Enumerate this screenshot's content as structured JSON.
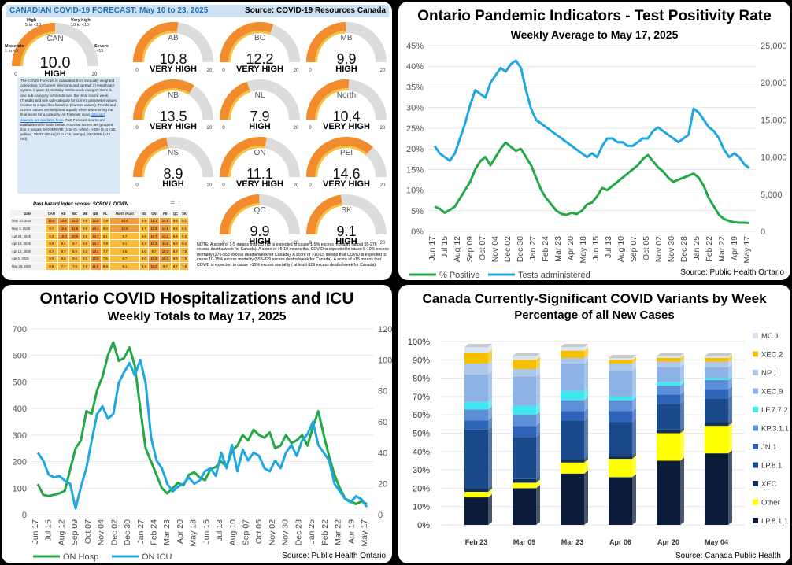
{
  "forecast": {
    "header_title": "CANADIAN COVID-19 FORECAST: May 10 to 23, 2025",
    "header_source": "Source: COVID-19 Resources Canada",
    "can_gauge": {
      "region": "CAN",
      "value": "10.0",
      "level": "HIGH",
      "fraction": 0.5,
      "labels": {
        "moderate": "Moderate",
        "moderate_range": "1 to <5",
        "high": "High",
        "high_range": "5 to <10",
        "very_high": "Very high",
        "very_high_range": "10 to <15",
        "severe": "Severe",
        "severe_range": ">15"
      },
      "min": "0",
      "max": "20"
    },
    "gauges": [
      {
        "region": "AB",
        "value": "10.8",
        "level": "VERY HIGH",
        "fraction": 0.54
      },
      {
        "region": "BC",
        "value": "12.2",
        "level": "VERY HIGH",
        "fraction": 0.61
      },
      {
        "region": "MB",
        "value": "9.9",
        "level": "HIGH",
        "fraction": 0.495
      },
      {
        "region": "NB",
        "value": "13.5",
        "level": "VERY HIGH",
        "fraction": 0.675
      },
      {
        "region": "NL",
        "value": "7.9",
        "level": "HIGH",
        "fraction": 0.395
      },
      {
        "region": "North",
        "value": "10.4",
        "level": "VERY HIGH",
        "fraction": 0.52
      },
      {
        "region": "NS",
        "value": "8.9",
        "level": "HIGH",
        "fraction": 0.445
      },
      {
        "region": "ON",
        "value": "11.1",
        "level": "VERY HIGH",
        "fraction": 0.555
      },
      {
        "region": "PEI",
        "value": "14.6",
        "level": "VERY HIGH",
        "fraction": 0.73
      },
      {
        "region": "QC",
        "value": "9.9",
        "level": "HIGH",
        "fraction": 0.495
      },
      {
        "region": "SK",
        "value": "9.1",
        "level": "HIGH",
        "fraction": 0.455
      }
    ],
    "gauge_min": "0",
    "gauge_max": "20",
    "description_text": "The COVID Forecast is calculated from 3 equally weighted categories: 1) Current infections and spread; 2) Healthcare system impact; 3) Mortality. Within each category there is one sub-category for trends over the most recent week (Trends) and one sub-category for current parameter values relative to a specified baseline (Current values). Trends and current values are weighted equally when determining the final score for a category. All Forecast input",
    "description_link": "data and sources are available here",
    "description_text2": ". Past Forecast scores are available in the Table below. Forecast scores are grouped into 4 ranges: MODERATE (1 to <5, white), HIGH (5 to <10, yellow), VERY HIGH (10 to <15, orange), SEVERE (>15 red)",
    "table_title": "Past hazard index scores: SCROLL DOWN",
    "table_icons": "☰ ⋮",
    "table_headers": [
      "Date",
      "CAN",
      "AB",
      "BC",
      "MB",
      "NB",
      "NL",
      "North /Nunt",
      "NS",
      "ON",
      "PE",
      "QC",
      "SK"
    ],
    "table_rows": [
      [
        "May 10, 2025",
        "10.0",
        "10.8",
        "12.2",
        "9.9",
        "13.5",
        "7.9",
        "10.4",
        "8.9",
        "11.1",
        "14.6",
        "9.9",
        "9.1"
      ],
      [
        "May 3, 2025",
        "9.7",
        "10.4",
        "11.6",
        "9.9",
        "14.1",
        "8.0",
        "10.0",
        "8.7",
        "10.6",
        "14.6",
        "9.6",
        "9.1"
      ],
      [
        "Apr 26, 2025",
        "9.3",
        "10.0",
        "10.6",
        "9.8",
        "14.7",
        "8.1",
        "9.7",
        "8.6",
        "10.7",
        "13.1",
        "9.4",
        "9.2"
      ],
      [
        "Apr 19, 2025",
        "9.0",
        "9.4",
        "9.7",
        "9.0",
        "14.1",
        "7.8",
        "9.1",
        "8.3",
        "10.2",
        "11.6",
        "9.0",
        "8.2"
      ],
      [
        "Apr 12, 2025",
        "8.7",
        "8.7",
        "8.9",
        "8.4",
        "10.4",
        "7.7",
        "8.6",
        "8.0",
        "9.7",
        "10.3",
        "8.7",
        "7.8"
      ],
      [
        "Apr 5, 2025",
        "9.0",
        "8.5",
        "8.6",
        "8.1",
        "10.9",
        "7.5",
        "8.7",
        "9.0",
        "10.5",
        "10.1",
        "9.3",
        "7.5"
      ],
      [
        "Mar 29, 2025",
        "8.6",
        "7.7",
        "7.8",
        "7.0",
        "11.0",
        "6.8",
        "8.1",
        "8.3",
        "10.0",
        "9.7",
        "8.7",
        "7.8"
      ]
    ],
    "note": "NOTE: A score of 1-5 means that COVID is expected to cause 1-5% excess mortality (about 55-276 excess deaths/week for Canada). A score of >5-10 means that COVID is expected to cause 5-10% excess mortality (276-553 excess deaths/week for Canada). A score of >10-15 means that COVID is expected to cause 10-15% excess mortality (553-829 excess deaths/week for Canada). A score of >15 means that COVID is expected to cause >15% excess mortality ( at least 829 excess deaths/week for Canada)."
  },
  "colors": {
    "orange": "#f28a2e",
    "yellow": "#f5c242",
    "green": "#22a844",
    "blue": "#1ea7e1"
  },
  "chart_data": [
    {
      "type": "line",
      "title": "Ontario Pandemic Indicators - Test Positivity Rate",
      "subtitle": "Weekly Average to May 17, 2025",
      "source": "Source: Public Health Ontario",
      "ylim_left": [
        0,
        45
      ],
      "ylim_right": [
        0,
        25000
      ],
      "left_ticks": [
        "0%",
        "5%",
        "10%",
        "15%",
        "20%",
        "25%",
        "30%",
        "35%",
        "40%",
        "45%"
      ],
      "right_ticks": [
        "0",
        "5,000",
        "10,000",
        "15,000",
        "20,000",
        "25,000"
      ],
      "x_ticks": [
        "Jun 17",
        "Jul 15",
        "Aug 12",
        "Sep 09",
        "Oct 07",
        "Nov 04",
        "Dec 02",
        "Dec 30",
        "Jan 27",
        "Feb 24",
        "Mar 23",
        "Apr 20",
        "May 18",
        "Jun 15",
        "Jul 13",
        "Aug 10",
        "Sep 07",
        "Oct 05",
        "Nov 02",
        "Nov 30",
        "Dec 28",
        "Jan 25",
        "Feb 22",
        "Mar 22",
        "Apr 19",
        "May 17"
      ],
      "series": [
        {
          "name": "% Positive",
          "axis": "left",
          "values": [
            6,
            5.5,
            4.5,
            5.2,
            6,
            8,
            10,
            12,
            15,
            17,
            18,
            16,
            18,
            20,
            21.5,
            20.5,
            19.5,
            20,
            18,
            16,
            13,
            10,
            8,
            6.5,
            5,
            4.2,
            4,
            4.5,
            4.2,
            5,
            6.5,
            7,
            8.5,
            10.5,
            10,
            11,
            12,
            13,
            14,
            15,
            16,
            17.5,
            18.5,
            17,
            15.5,
            14.5,
            13,
            12,
            12.5,
            13,
            13.5,
            14,
            13,
            11,
            8,
            6,
            4,
            3,
            2.5,
            2.2,
            2.1,
            2.1,
            2
          ]
        },
        {
          "name": "Tests administered",
          "axis": "right",
          "values": [
            11500,
            10500,
            10000,
            9500,
            10500,
            12500,
            14500,
            17000,
            19000,
            18500,
            18000,
            20000,
            21000,
            22000,
            21500,
            22500,
            23000,
            22000,
            19000,
            16500,
            15000,
            14500,
            14000,
            13500,
            13000,
            12500,
            12000,
            11500,
            11000,
            10500,
            10000,
            10500,
            10000,
            11500,
            12500,
            12500,
            12000,
            12000,
            11500,
            11500,
            12000,
            12500,
            12500,
            13500,
            14000,
            13500,
            13000,
            12500,
            12000,
            12500,
            13000,
            16500,
            16000,
            15000,
            14000,
            13500,
            12500,
            11000,
            10000,
            10500,
            10000,
            9000,
            8500
          ]
        }
      ]
    },
    {
      "type": "line",
      "title": "Ontario COVID Hospitalizations and ICU",
      "subtitle": "Weekly Totals to May 17, 2025",
      "source": "Source: Public Health Ontario",
      "ylim_left": [
        0,
        700
      ],
      "ylim_right": [
        0,
        120
      ],
      "left_ticks": [
        "0",
        "100",
        "200",
        "300",
        "400",
        "500",
        "600",
        "700"
      ],
      "right_ticks": [
        "0",
        "20",
        "40",
        "60",
        "80",
        "100",
        "120"
      ],
      "x_ticks": [
        "Jun 17",
        "Jul 15",
        "Aug 12",
        "Sep 09",
        "Oct 07",
        "Nov 04",
        "Dec 02",
        "Dec 30",
        "Jan 27",
        "Feb 24",
        "Mar 23",
        "Apr 20",
        "May 18",
        "Jun 15",
        "Jul 13",
        "Aug 10",
        "Sep 07",
        "Oct 05",
        "Nov 02",
        "Nov 30",
        "Dec 28",
        "Jan 25",
        "Feb 22",
        "Mar 22",
        "Apr 19",
        "May 17"
      ],
      "series": [
        {
          "name": "ON Hosp",
          "axis": "left",
          "values": [
            115,
            75,
            70,
            75,
            80,
            90,
            170,
            250,
            280,
            390,
            380,
            470,
            520,
            600,
            650,
            580,
            590,
            630,
            560,
            400,
            250,
            200,
            150,
            100,
            80,
            100,
            120,
            110,
            150,
            160,
            140,
            130,
            170,
            180,
            200,
            180,
            240,
            260,
            300,
            280,
            320,
            300,
            290,
            310,
            250,
            260,
            300,
            270,
            280,
            300,
            260,
            330,
            390,
            300,
            220,
            150,
            100,
            60,
            50,
            40,
            50,
            40
          ]
        },
        {
          "name": "ON ICU",
          "axis": "right",
          "values": [
            40,
            35,
            26,
            24,
            25,
            22,
            20,
            4,
            18,
            30,
            48,
            65,
            70,
            62,
            65,
            85,
            92,
            98,
            90,
            100,
            85,
            50,
            35,
            30,
            20,
            15,
            18,
            20,
            24,
            20,
            22,
            28,
            30,
            25,
            40,
            30,
            45,
            28,
            42,
            35,
            40,
            38,
            30,
            28,
            35,
            30,
            40,
            45,
            38,
            48,
            52,
            60,
            45,
            40,
            35,
            20,
            15,
            10,
            8,
            12,
            10,
            5
          ]
        }
      ]
    },
    {
      "type": "bar",
      "stacked": true,
      "title": "Canada Currently-Significant COVID Variants by Week",
      "subtitle": "Percentage of all New Cases",
      "source": "Source: Canada Public Health",
      "y_ticks": [
        "0%",
        "10%",
        "20%",
        "30%",
        "40%",
        "50%",
        "60%",
        "70%",
        "80%",
        "90%",
        "100%"
      ],
      "categories": [
        "Feb 23",
        "Mar 09",
        "Mar 23",
        "Apr 06",
        "Apr 20",
        "May 04"
      ],
      "series": [
        {
          "name": "LP.8.1.1",
          "color": "#0b1c3a",
          "values": [
            15,
            20,
            28,
            26,
            35,
            39
          ]
        },
        {
          "name": "Other",
          "color": "#ffff00",
          "values": [
            3,
            3,
            6,
            10,
            15,
            15
          ]
        },
        {
          "name": "XEC",
          "color": "#0f2f5e",
          "values": [
            2,
            2,
            2,
            2,
            2,
            2
          ]
        },
        {
          "name": "LP.8.1",
          "color": "#1b4a8c",
          "values": [
            32,
            23,
            21,
            18,
            14,
            13
          ]
        },
        {
          "name": "JN.1",
          "color": "#2e64b8",
          "values": [
            5,
            6,
            5,
            6,
            5,
            5
          ]
        },
        {
          "name": "KP.3.1.1",
          "color": "#5d8fd6",
          "values": [
            6,
            6,
            6,
            6,
            5,
            5
          ]
        },
        {
          "name": "LF.7.7.2",
          "color": "#3fe7ee",
          "values": [
            4,
            5,
            5,
            2,
            2,
            1
          ]
        },
        {
          "name": "XEC.9",
          "color": "#8db3e6",
          "values": [
            15,
            16,
            15,
            14,
            8,
            6
          ]
        },
        {
          "name": "NP.1",
          "color": "#aec8ea",
          "values": [
            6,
            4,
            3,
            4,
            3,
            3
          ]
        },
        {
          "name": "XEC.2",
          "color": "#f6c000",
          "values": [
            6,
            5,
            4,
            2,
            2,
            2
          ]
        },
        {
          "name": "MC.1",
          "color": "#d6e4f3",
          "values": [
            3,
            2,
            2,
            1,
            1,
            1
          ]
        }
      ]
    }
  ]
}
